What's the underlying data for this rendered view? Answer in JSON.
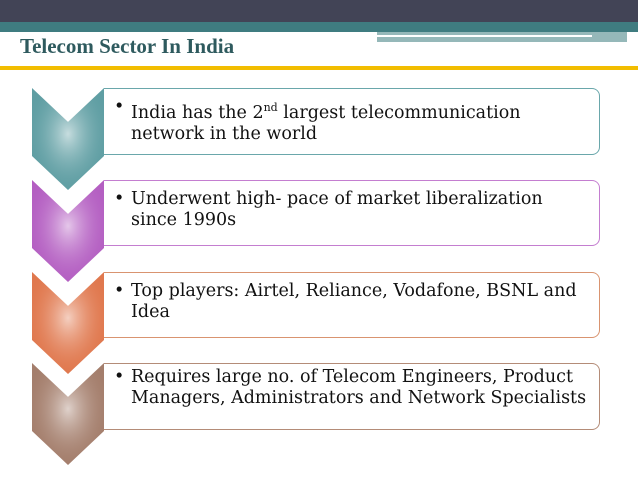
{
  "title": "Telecom Sector In India",
  "items": [
    {
      "text_pre": "India has the 2",
      "sup": "nd",
      "text_post": " largest telecommunication network in the world",
      "color": "#5f9ea3",
      "border": "#6aa7ab"
    },
    {
      "text": "Underwent high- pace of market liberalization since 1990s",
      "color": "#b45fc2",
      "border": "#c47ed0"
    },
    {
      "text": "Top players: Airtel, Reliance, Vodafone, BSNL and Idea",
      "color": "#e0784e",
      "border": "#d99470"
    },
    {
      "text": "Requires large no. of Telecom Engineers, Product Managers, Administrators and Network Specialists",
      "color": "#a47e6c",
      "border": "#b48c78"
    }
  ]
}
